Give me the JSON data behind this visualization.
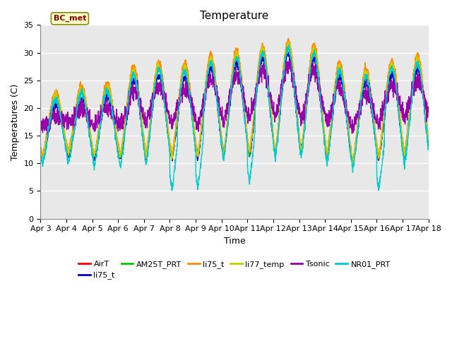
{
  "title": "Temperature",
  "ylabel": "Temperatures (C)",
  "xlabel": "Time",
  "ylim": [
    0,
    35
  ],
  "yticks": [
    0,
    5,
    10,
    15,
    20,
    25,
    30,
    35
  ],
  "xtick_labels": [
    "Apr 3",
    "Apr 4",
    "Apr 5",
    "Apr 6",
    "Apr 7",
    "Apr 8",
    "Apr 9",
    "Apr 10",
    "Apr 11",
    "Apr 12",
    "Apr 13",
    "Apr 14",
    "Apr 15",
    "Apr 16",
    "Apr 17",
    "Apr 18"
  ],
  "series": [
    {
      "name": "AirT",
      "color": "#ff0000"
    },
    {
      "name": "li75_t",
      "color": "#0000cc"
    },
    {
      "name": "AM25T_PRT",
      "color": "#00cc00"
    },
    {
      "name": "li75_t",
      "color": "#ff8800"
    },
    {
      "name": "li77_temp",
      "color": "#cccc00"
    },
    {
      "name": "Tsonic",
      "color": "#9900aa"
    },
    {
      "name": "NR01_PRT",
      "color": "#00cccc"
    }
  ],
  "legend_label": "BC_met",
  "legend_bg": "#ffffcc",
  "legend_border": "#8b0000",
  "fig_bg": "#ffffff",
  "plot_bg": "#e8e8e8",
  "grid_color": "#ffffff",
  "shade_band": [
    20,
    27
  ],
  "shade_color": "#d8d8d8",
  "title_fontsize": 11,
  "label_fontsize": 9,
  "tick_fontsize": 8,
  "n_days": 15,
  "n_per_day": 144
}
